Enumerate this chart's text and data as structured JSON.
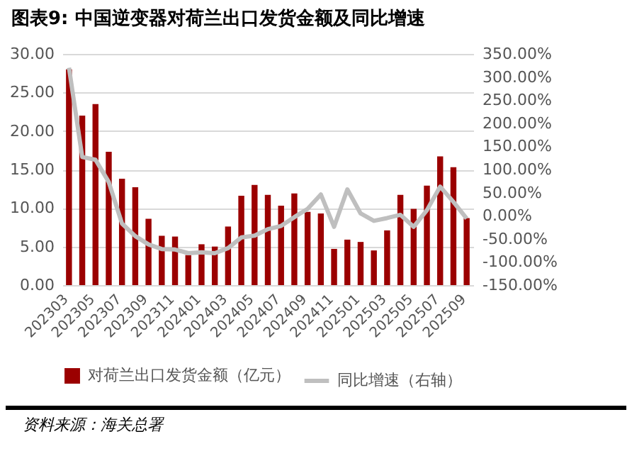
{
  "chart_data": {
    "type": "bar",
    "title": "图表9: 中国逆变器对荷兰出口发货金额及同比增速",
    "categories": [
      "202303",
      null,
      "202305",
      null,
      "202307",
      null,
      "202309",
      null,
      "202311",
      null,
      "202401",
      null,
      "202403",
      null,
      "202405",
      null,
      "202407",
      null,
      "202409",
      null,
      "202411",
      null,
      "202501",
      null,
      "202503",
      null,
      "202505",
      null,
      "202507",
      null,
      "202509"
    ],
    "series": [
      {
        "name": "对荷兰出口发货金额（亿元）",
        "color": "#9b0000",
        "values": [
          28,
          22,
          23.5,
          17.3,
          13.8,
          12.7,
          8.6,
          6.4,
          6.3,
          3.9,
          5.3,
          5.0,
          7.6,
          11.6,
          13.0,
          11.7,
          10.3,
          11.9,
          9.5,
          9.3,
          4.7,
          5.9,
          5.6,
          4.5,
          7.1,
          11.7,
          9.9,
          12.9,
          16.7,
          15.3,
          8.7
        ]
      },
      {
        "name": "同比增速（右轴）",
        "type": "line",
        "axis": "y2",
        "color": "#bfbfbf",
        "values": [
          320,
          127,
          121,
          73,
          -17,
          -44,
          -62,
          -72,
          -73,
          -81,
          -79,
          -81,
          -70,
          -47,
          -43,
          -29,
          -22,
          -3,
          15,
          46,
          -24,
          57,
          5,
          -11,
          -5,
          2,
          -24,
          12,
          63,
          30,
          -6
        ]
      }
    ],
    "ylim": [
      0,
      30
    ],
    "yticks": [
      {
        "value": 0,
        "label": "0.00"
      },
      {
        "value": 5,
        "label": "5.00"
      },
      {
        "value": 10,
        "label": "10.00"
      },
      {
        "value": 15,
        "label": "15.00"
      },
      {
        "value": 20,
        "label": "20.00"
      },
      {
        "value": 25,
        "label": "25.00"
      },
      {
        "value": 30,
        "label": "30.00"
      }
    ],
    "y2lim": [
      -150,
      350
    ],
    "y2ticks": [
      {
        "value": -150,
        "label": "-150.00%"
      },
      {
        "value": -100,
        "label": "-100.00%"
      },
      {
        "value": -50,
        "label": "-50.00%"
      },
      {
        "value": 0,
        "label": "0.00%"
      },
      {
        "value": 50,
        "label": "50.00%"
      },
      {
        "value": 100,
        "label": "100.00%"
      },
      {
        "value": 150,
        "label": "150.00%"
      },
      {
        "value": 200,
        "label": "200.00%"
      },
      {
        "value": 250,
        "label": "250.00%"
      },
      {
        "value": 300,
        "label": "300.00%"
      },
      {
        "value": 350,
        "label": "350.00%"
      }
    ],
    "grid": "y",
    "legend": "bottom",
    "annotations": [
      "资料来源：海关总署"
    ]
  }
}
